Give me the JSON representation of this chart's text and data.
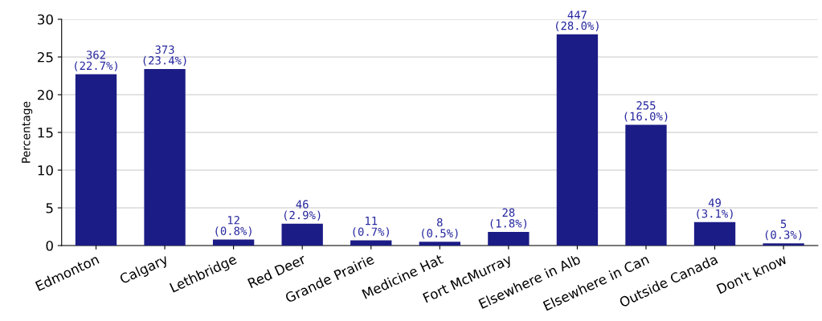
{
  "chart_data": {
    "type": "bar",
    "ylabel": "Percentage",
    "categories": [
      "Edmonton",
      "Calgary",
      "Lethbridge",
      "Red Deer",
      "Grande Prairie",
      "Medicine Hat",
      "Fort McMurray",
      "Elsewhere in Alb",
      "Elsewhere in Can",
      "Outside Canada",
      "Don't know"
    ],
    "values": [
      22.7,
      23.4,
      0.8,
      2.9,
      0.7,
      0.5,
      1.8,
      28.0,
      16.0,
      3.1,
      0.3
    ],
    "value_labels": [
      "362\n(22.7%)",
      "373\n(23.4%)",
      "12\n(0.8%)",
      "46\n(2.9%)",
      "11\n(0.7%)",
      "8\n(0.5%)",
      "28\n(1.8%)",
      "447\n(28.0%)",
      "255\n(16.0%)",
      "49\n(3.1%)",
      "5\n(0.3%)"
    ],
    "color": "#1c1c86",
    "ylim": [
      0,
      30
    ],
    "yticks": [
      0,
      5,
      10,
      15,
      20,
      25,
      30
    ],
    "grid": "y"
  }
}
